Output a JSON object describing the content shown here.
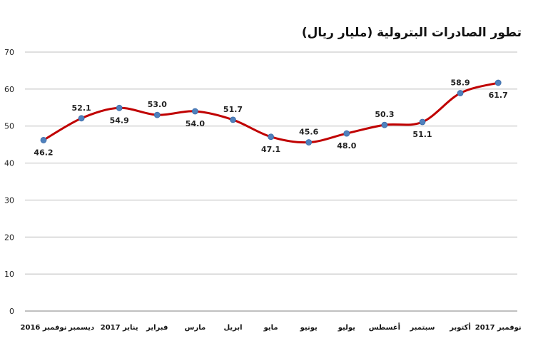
{
  "chart_data": {
    "type": "line",
    "title": "تطور الصادرات البترولية (مليار ريال)",
    "categories": [
      "نوفمبر 2016",
      "ديسمبر",
      "يناير 2017",
      "فبراير",
      "مارس",
      "ابريل",
      "مايو",
      "يونيو",
      "يوليو",
      "أغسطس",
      "سبتمبر",
      "أكتوبر",
      "نوفمبر 2017"
    ],
    "series": [
      {
        "values": [
          46.2,
          52.1,
          54.9,
          53.0,
          54.0,
          51.7,
          47.1,
          45.6,
          48.0,
          50.3,
          51.1,
          58.9,
          61.7
        ]
      }
    ],
    "data_labels": [
      "46.2",
      "52.1",
      "54.9",
      "53.0",
      "54.0",
      "51.7",
      "47.1",
      "45.6",
      "48.0",
      "50.3",
      "51.1",
      "58.9",
      "61.7"
    ],
    "xlabel": "",
    "ylabel": "",
    "ylim": [
      0,
      70
    ],
    "yticks": [
      0,
      10,
      20,
      30,
      40,
      50,
      60,
      70
    ],
    "grid": true,
    "smooth": true,
    "line_color": "#c00000",
    "marker_color": "#4f81bd",
    "grid_color": "#bfbfbf"
  }
}
